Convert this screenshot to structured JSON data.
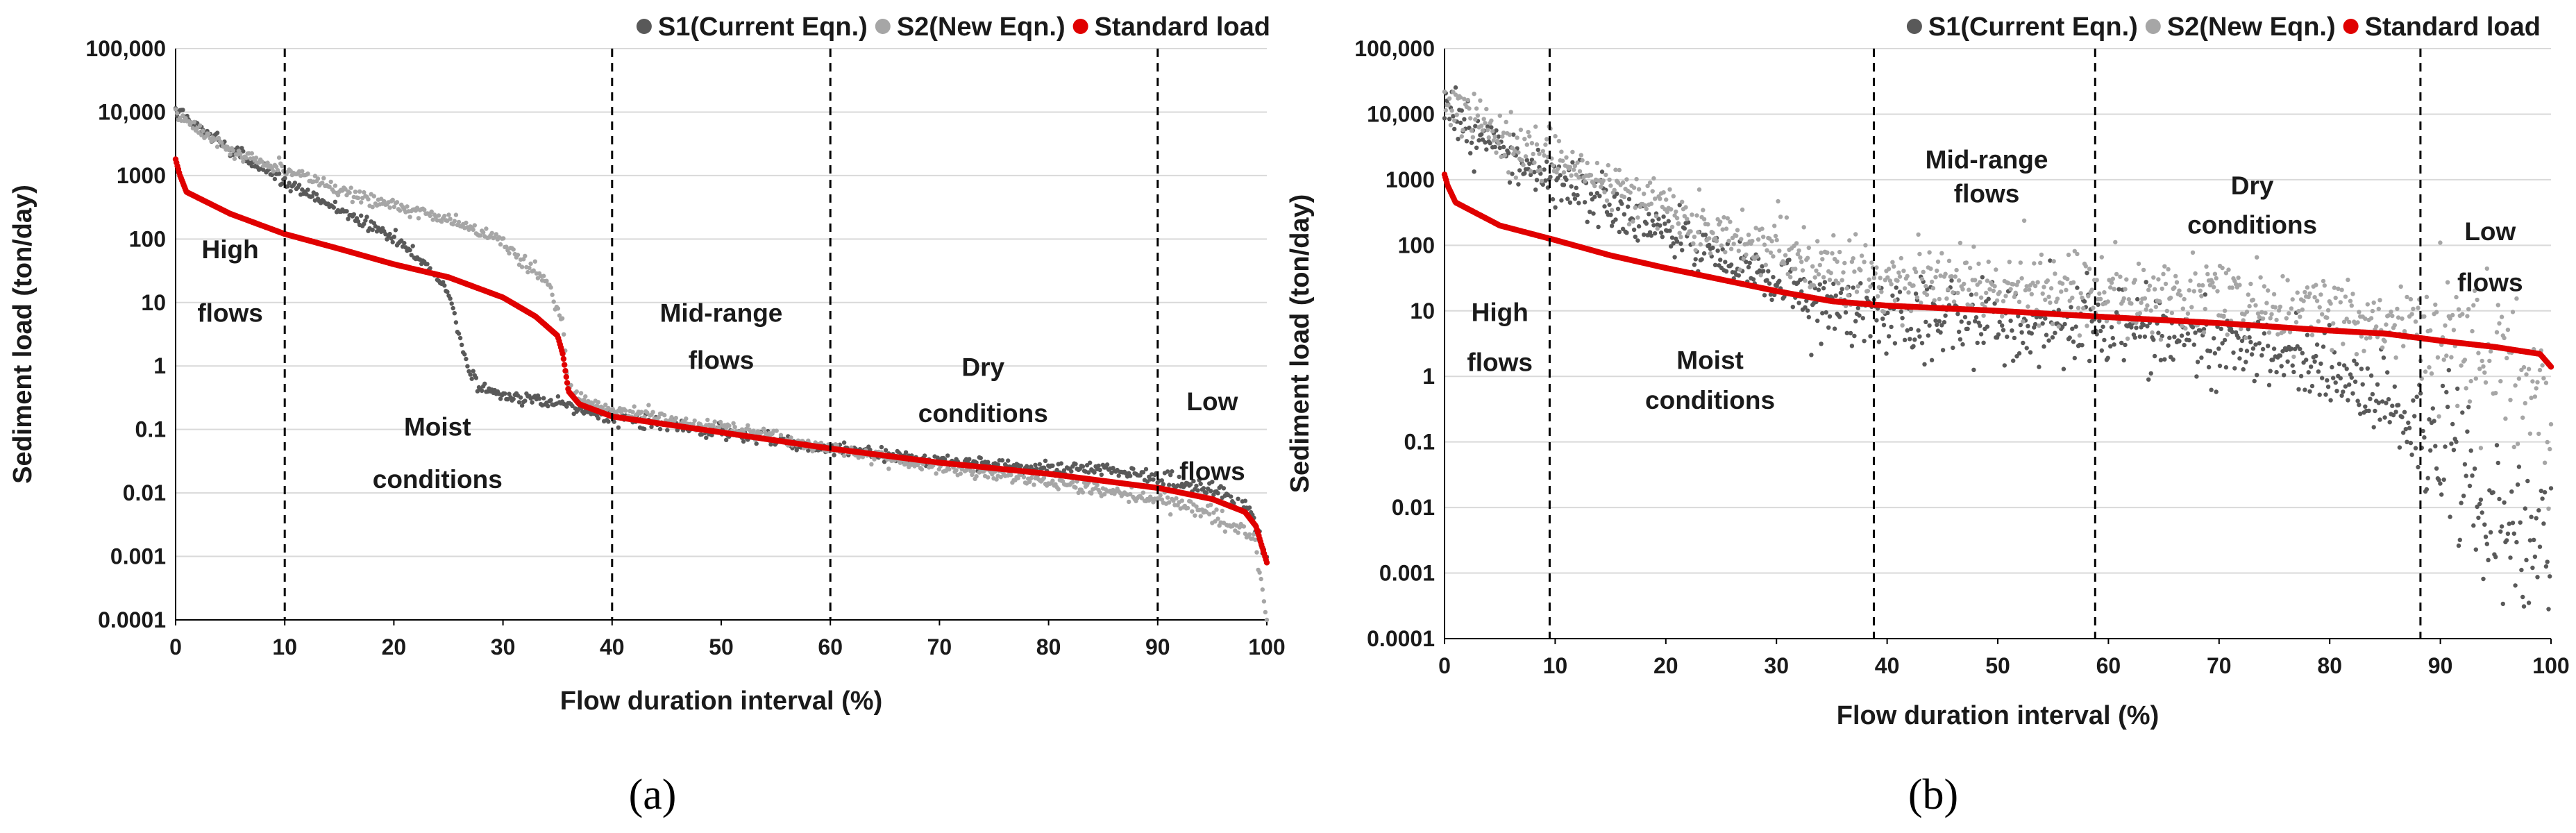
{
  "figure": {
    "panel_labels": [
      "(a)",
      "(b)"
    ]
  },
  "chart_data": [
    {
      "panel": "(a)",
      "type": "scatter",
      "xlabel": "Flow duration interval (%)",
      "ylabel": "Sediment load (ton/day)",
      "xlim": [
        0,
        100
      ],
      "ylim": [
        0.0001,
        100000
      ],
      "yscale": "log",
      "x_ticks": [
        0,
        10,
        20,
        30,
        40,
        50,
        60,
        70,
        80,
        90,
        100
      ],
      "y_ticks": [
        {
          "value": 100000,
          "label": "100,000"
        },
        {
          "value": 10000,
          "label": "10,000"
        },
        {
          "value": 1000,
          "label": "1000"
        },
        {
          "value": 100,
          "label": "100"
        },
        {
          "value": 10,
          "label": "10"
        },
        {
          "value": 1,
          "label": "1"
        },
        {
          "value": 0.1,
          "label": "0.1"
        },
        {
          "value": 0.01,
          "label": "0.01"
        },
        {
          "value": 0.001,
          "label": "0.001"
        },
        {
          "value": 0.0001,
          "label": "0.0001"
        }
      ],
      "grid": "horizontal",
      "legend_position": "top-right",
      "dividers": [
        10,
        40,
        60,
        90
      ],
      "regions": [
        {
          "lines": [
            "High",
            "flows"
          ],
          "x": 5,
          "y": [
            50,
            5
          ]
        },
        {
          "lines": [
            "Moist",
            "conditions"
          ],
          "x": 24,
          "y": [
            0.08,
            0.012
          ]
        },
        {
          "lines": [
            "Mid-range",
            "flows"
          ],
          "x": 50,
          "y": [
            5,
            0.9
          ]
        },
        {
          "lines": [
            "Dry",
            "conditions"
          ],
          "x": 74,
          "y": [
            0.7,
            0.13
          ]
        },
        {
          "lines": [
            "Low",
            "flows"
          ],
          "x": 95,
          "y": [
            0.2,
            0.016
          ]
        }
      ],
      "series": [
        {
          "name": "S1(Current Eqn.)",
          "color": "#595959",
          "spread": 0.05,
          "x": [
            0,
            1,
            5,
            10,
            15,
            20,
            23,
            25,
            26,
            27,
            28,
            30,
            35,
            40,
            50,
            60,
            70,
            80,
            85,
            90,
            95,
            97,
            98.5,
            100
          ],
          "y": [
            12000,
            8000,
            2500,
            800,
            300,
            100,
            40,
            15,
            3,
            0.8,
            0.45,
            0.35,
            0.25,
            0.16,
            0.09,
            0.05,
            0.032,
            0.025,
            0.025,
            0.017,
            0.011,
            0.008,
            0.005,
            0.0008
          ]
        },
        {
          "name": "S2(New Eqn.)",
          "color": "#a6a6a6",
          "spread": 0.05,
          "x": [
            0,
            1,
            5,
            10,
            15,
            20,
            25,
            30,
            34,
            35.5,
            36,
            37,
            40,
            50,
            60,
            70,
            80,
            90,
            94,
            97,
            99,
            100
          ],
          "y": [
            10000,
            7000,
            2500,
            1200,
            600,
            350,
            200,
            90,
            20,
            5,
            0.5,
            0.3,
            0.2,
            0.11,
            0.05,
            0.025,
            0.015,
            0.008,
            0.005,
            0.003,
            0.0015,
            0.0001
          ]
        },
        {
          "name": "Standard load",
          "color": "#e00000",
          "spread": 0,
          "x": [
            0,
            0.4,
            1,
            5,
            10,
            15,
            20,
            25,
            30,
            33,
            35,
            35.5,
            36,
            37,
            40,
            50,
            60,
            70,
            80,
            90,
            95,
            98,
            99,
            100
          ],
          "y": [
            1800,
            1000,
            550,
            250,
            120,
            70,
            40,
            25,
            12,
            6,
            3,
            1.5,
            0.4,
            0.25,
            0.16,
            0.09,
            0.05,
            0.03,
            0.02,
            0.012,
            0.008,
            0.005,
            0.003,
            0.0008
          ]
        }
      ]
    },
    {
      "panel": "(b)",
      "type": "scatter",
      "xlabel": "Flow duration interval (%)",
      "ylabel": "Sediment load (ton/day)",
      "xlim": [
        0,
        100
      ],
      "ylim": [
        0.0001,
        100000
      ],
      "yscale": "log",
      "x_ticks": [
        0,
        10,
        20,
        30,
        40,
        50,
        60,
        70,
        80,
        90,
        100
      ],
      "y_ticks": [
        {
          "value": 100000,
          "label": "100,000"
        },
        {
          "value": 10000,
          "label": "10,000"
        },
        {
          "value": 1000,
          "label": "1000"
        },
        {
          "value": 100,
          "label": "100"
        },
        {
          "value": 10,
          "label": "10"
        },
        {
          "value": 1,
          "label": "1"
        },
        {
          "value": 0.1,
          "label": "0.1"
        },
        {
          "value": 0.01,
          "label": "0.01"
        },
        {
          "value": 0.001,
          "label": "0.001"
        },
        {
          "value": 0.0001,
          "label": "0.0001"
        }
      ],
      "grid": "horizontal",
      "legend_position": "top-right",
      "dividers": [
        9.5,
        38.8,
        58.8,
        88.2
      ],
      "regions": [
        {
          "lines": [
            "High",
            "flows"
          ],
          "x": 5,
          "y": [
            7,
            1.2
          ]
        },
        {
          "lines": [
            "Moist",
            "conditions"
          ],
          "x": 24,
          "y": [
            1.3,
            0.32
          ]
        },
        {
          "lines": [
            "Mid-range",
            "flows"
          ],
          "x": 49,
          "y": [
            1500,
            450
          ]
        },
        {
          "lines": [
            "Dry",
            "conditions"
          ],
          "x": 73,
          "y": [
            600,
            150
          ]
        },
        {
          "lines": [
            "Low",
            "flows"
          ],
          "x": 94.5,
          "y": [
            120,
            20
          ]
        }
      ],
      "series": [
        {
          "name": "S1(Current Eqn.)",
          "color": "#595959",
          "spread": 0.2,
          "x": [
            0,
            2,
            5,
            10,
            15,
            20,
            25,
            30,
            35,
            40,
            50,
            60,
            70,
            75,
            80,
            85,
            88,
            92,
            96,
            98,
            100
          ],
          "y": [
            15000,
            8000,
            3000,
            1000,
            400,
            150,
            60,
            25,
            15,
            10,
            7,
            5,
            3.5,
            2.5,
            1.2,
            0.4,
            0.15,
            0.03,
            0.005,
            0.002,
            0.008
          ]
        },
        {
          "name": "S2(New Eqn.)",
          "color": "#a6a6a6",
          "spread": 0.2,
          "x": [
            0,
            2,
            5,
            10,
            15,
            20,
            25,
            30,
            35,
            40,
            50,
            60,
            70,
            80,
            88,
            92,
            96,
            98,
            100
          ],
          "y": [
            20000,
            10000,
            5000,
            1800,
            800,
            350,
            150,
            80,
            45,
            30,
            25,
            18,
            14,
            10,
            6,
            3,
            1.5,
            0.8,
            0.2
          ]
        },
        {
          "name": "Standard load",
          "color": "#e00000",
          "spread": 0,
          "x": [
            0,
            0.3,
            1,
            3,
            5,
            10,
            15,
            20,
            25,
            30,
            35,
            40,
            50,
            60,
            70,
            80,
            85,
            90,
            95,
            99,
            100
          ],
          "y": [
            1200,
            800,
            450,
            300,
            200,
            120,
            70,
            45,
            30,
            20,
            14,
            12,
            10,
            8,
            6.5,
            5,
            4.5,
            3.5,
            2.8,
            2.2,
            1.4
          ]
        }
      ]
    }
  ]
}
